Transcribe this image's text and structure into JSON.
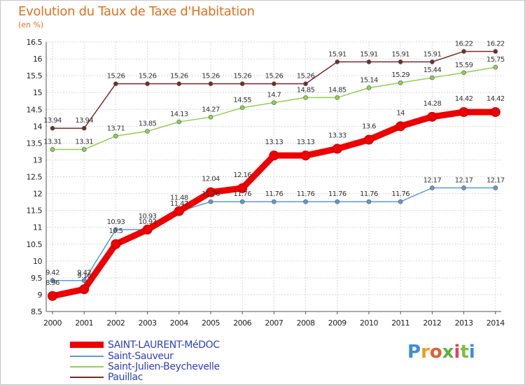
{
  "header": {
    "title": "Evolution du Taux de Taxe d'Habitation",
    "subtitle": "(en %)"
  },
  "logo": {
    "text": "Proxiti"
  },
  "chart_data": {
    "type": "line",
    "x": [
      "2000",
      "2001",
      "2002",
      "2003",
      "2004",
      "2005",
      "2006",
      "2007",
      "2008",
      "2009",
      "2010",
      "2011",
      "2012",
      "2013",
      "2014"
    ],
    "ylim": [
      8.5,
      16.5
    ],
    "yticks": [
      "8.5",
      "9",
      "9.5",
      "10",
      "10.5",
      "11",
      "11.5",
      "12",
      "12.5",
      "13",
      "13.5",
      "14",
      "14.5",
      "15",
      "15.5",
      "16",
      "16.5"
    ],
    "grid": true,
    "legend_position": "bottom-left",
    "series": [
      {
        "name": "SAINT-LAURENT-MéDOC",
        "color": "#ee0000",
        "values": [
          8.96,
          9.16,
          10.5,
          10.93,
          11.48,
          12.04,
          12.16,
          13.13,
          13.13,
          13.33,
          13.6,
          14,
          14.28,
          14.42,
          14.42
        ],
        "labels": [
          "8.96",
          "9.16",
          "10.5",
          "10.93",
          "11.48",
          "12.04",
          "12.16",
          "13.13",
          "13.13",
          "13.33",
          "13.6",
          "14",
          "14.28",
          "14.42",
          "14.42"
        ]
      },
      {
        "name": "Saint-Sauveur",
        "color": "#5b9bd5",
        "values": [
          9.42,
          9.42,
          10.93,
          10.93,
          11.47,
          11.76,
          11.76,
          11.76,
          11.76,
          11.76,
          11.76,
          11.76,
          12.17,
          12.17,
          12.17
        ],
        "labels": [
          "9.42",
          "9.42",
          "10.93",
          "10.93",
          "11.47",
          "11.76",
          "11.76",
          "11.76",
          "11.76",
          "11.76",
          "11.76",
          "11.76",
          "12.17",
          "12.17",
          "12.17"
        ]
      },
      {
        "name": "Saint-Julien-Beychevelle",
        "color": "#90d050",
        "values": [
          13.31,
          13.31,
          13.71,
          13.85,
          14.13,
          14.27,
          14.55,
          14.7,
          14.85,
          14.85,
          15.14,
          15.29,
          15.44,
          15.59,
          15.75
        ],
        "labels": [
          "13.31",
          "13.31",
          "13.71",
          "13.85",
          "14.13",
          "14.27",
          "14.55",
          "14.7",
          "14.85",
          "14.85",
          "15.14",
          "15.29",
          "15.44",
          "15.59",
          "15.75"
        ]
      },
      {
        "name": "Pauillac",
        "color": "#7a2a2a",
        "values": [
          13.94,
          13.94,
          15.26,
          15.26,
          15.26,
          15.26,
          15.26,
          15.26,
          15.26,
          15.91,
          15.91,
          15.91,
          15.91,
          16.22,
          16.22
        ],
        "labels": [
          "13.94",
          "13.94",
          "15.26",
          "15.26",
          "15.26",
          "15.26",
          "15.26",
          "15.26",
          "15.26",
          "15.91",
          "15.91",
          "15.91",
          "15.91",
          "16.22",
          "16.22"
        ]
      }
    ]
  }
}
